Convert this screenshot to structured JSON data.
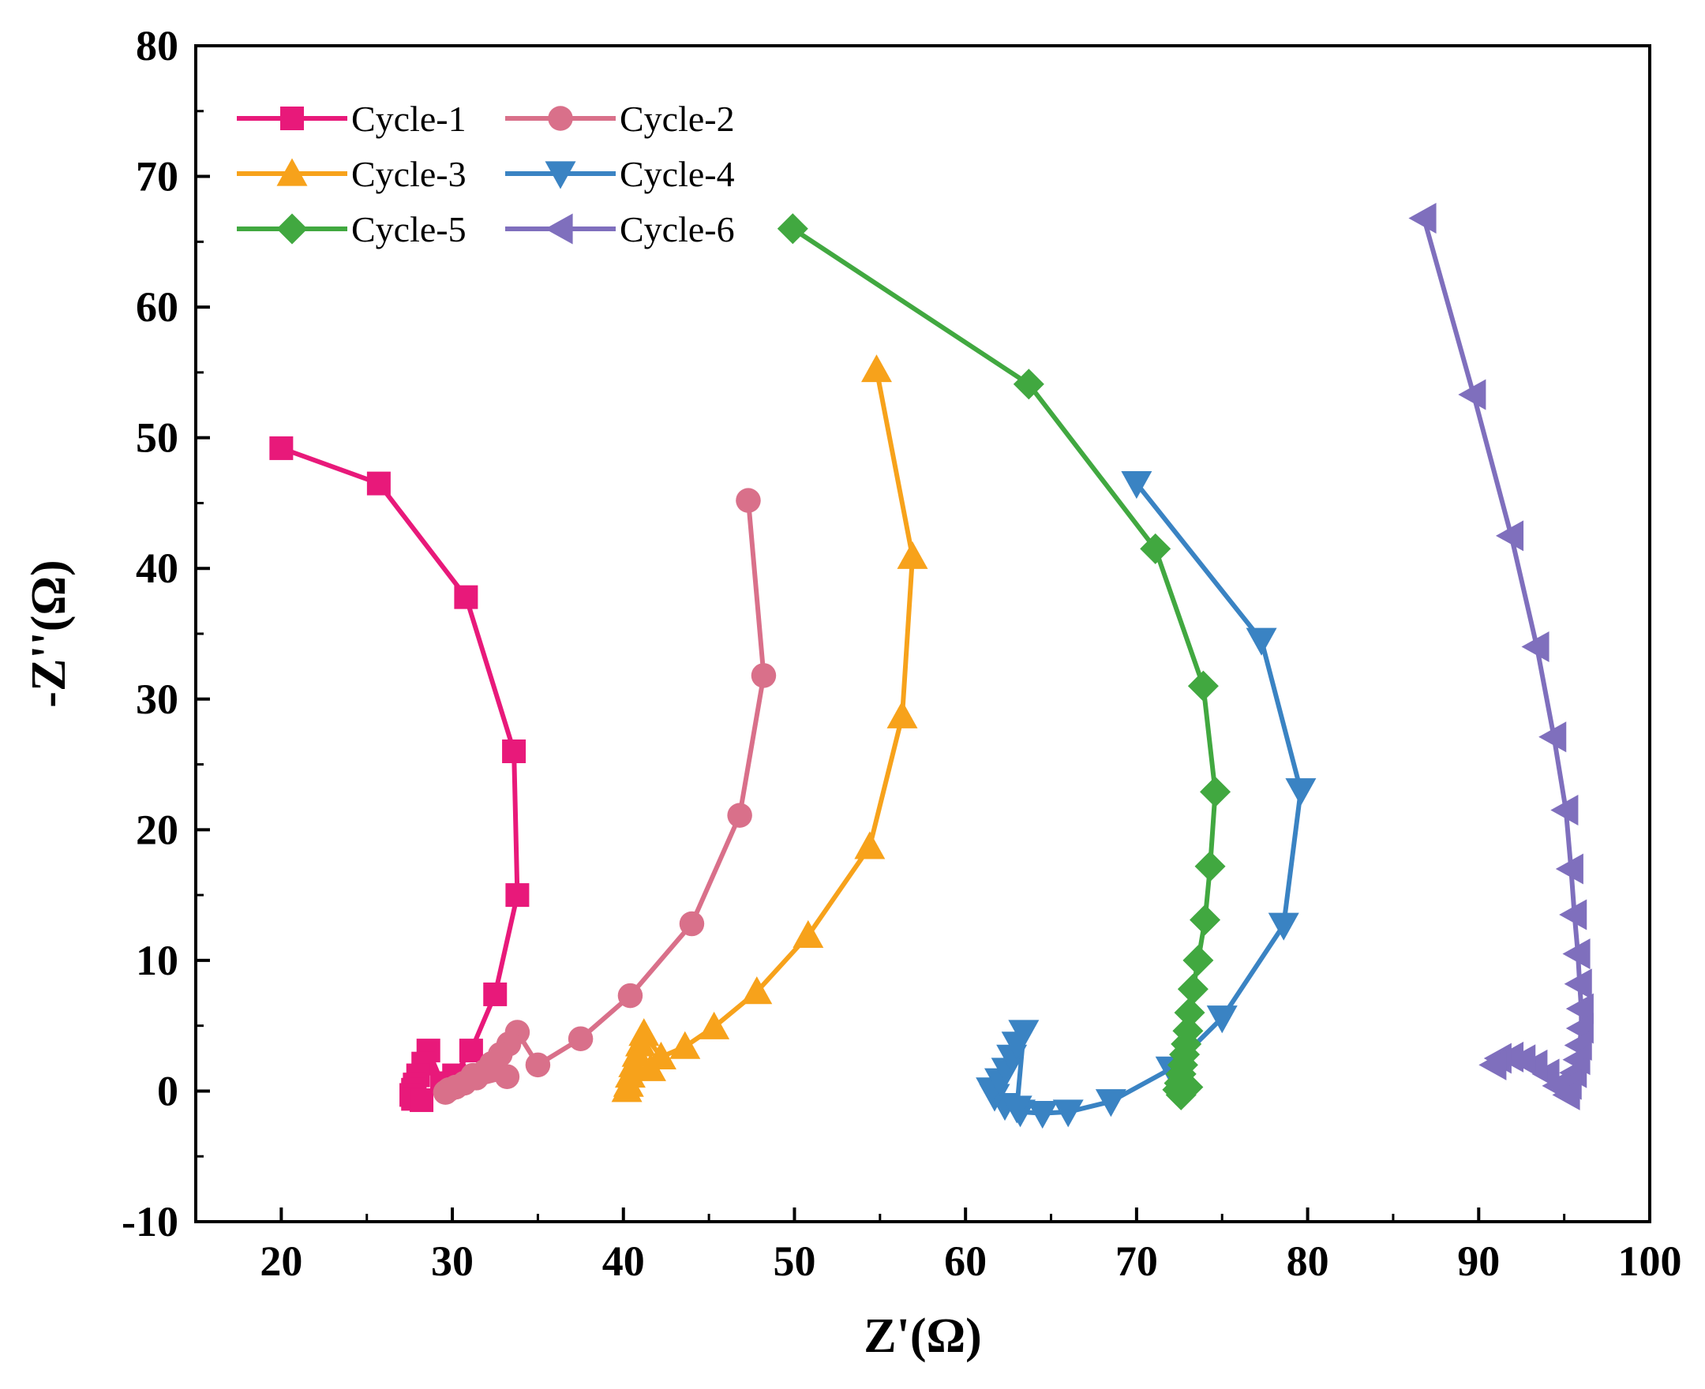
{
  "chart_data": {
    "type": "line",
    "xlabel": "Z'(Ω)",
    "ylabel": "-Z''(Ω)",
    "xlim": [
      15,
      100
    ],
    "ylim": [
      -10,
      80
    ],
    "xticks": [
      20,
      30,
      40,
      50,
      60,
      70,
      80,
      90,
      100
    ],
    "yticks": [
      -10,
      0,
      10,
      20,
      30,
      40,
      50,
      60,
      70,
      80
    ],
    "legend_position": "top-left",
    "series": [
      {
        "name": "Cycle-1",
        "color": "#e8197a",
        "marker": "square",
        "points": [
          [
            20,
            49.2
          ],
          [
            25.7,
            46.5
          ],
          [
            30.8,
            37.8
          ],
          [
            33.6,
            26
          ],
          [
            33.8,
            15
          ],
          [
            32.5,
            7.4
          ],
          [
            31.1,
            3.1
          ],
          [
            30.1,
            1.2
          ],
          [
            29.4,
            0.6
          ],
          [
            28.6,
            3.1
          ],
          [
            28.3,
            2.1
          ],
          [
            28.0,
            1.2
          ],
          [
            27.8,
            0.5
          ],
          [
            27.7,
            0.1
          ],
          [
            27.6,
            -0.3
          ],
          [
            27.7,
            -0.6
          ],
          [
            28.2,
            -0.7
          ]
        ]
      },
      {
        "name": "Cycle-2",
        "color": "#d9708a",
        "marker": "circle",
        "points": [
          [
            47.3,
            45.2
          ],
          [
            48.2,
            31.8
          ],
          [
            46.8,
            21.1
          ],
          [
            44,
            12.8
          ],
          [
            40.4,
            7.3
          ],
          [
            37.5,
            4
          ],
          [
            35,
            2
          ],
          [
            33.8,
            4.5
          ],
          [
            33.3,
            3.6
          ],
          [
            32.8,
            2.8
          ],
          [
            32.3,
            2.1
          ],
          [
            31.9,
            1.5
          ],
          [
            31.4,
            1.0
          ],
          [
            31.2,
            1.2
          ],
          [
            30.7,
            0.6
          ],
          [
            30.2,
            0.3
          ],
          [
            29.8,
            0.1
          ],
          [
            29.6,
            -0.1
          ],
          [
            33.2,
            1.1
          ]
        ]
      },
      {
        "name": "Cycle-3",
        "color": "#f7a21b",
        "marker": "triangle-up",
        "points": [
          [
            54.8,
            55.2
          ],
          [
            56.9,
            40.9
          ],
          [
            56.3,
            28.7
          ],
          [
            54.4,
            18.7
          ],
          [
            50.8,
            11.9
          ],
          [
            47.8,
            7.6
          ],
          [
            45.3,
            4.9
          ],
          [
            43.6,
            3.4
          ],
          [
            42.2,
            2.6
          ],
          [
            41.2,
            4.4
          ],
          [
            41.0,
            3.6
          ],
          [
            40.8,
            2.8
          ],
          [
            40.6,
            2.0
          ],
          [
            40.4,
            1.2
          ],
          [
            40.3,
            0.5
          ],
          [
            40.2,
            0.1
          ],
          [
            41.6,
            1.7
          ]
        ]
      },
      {
        "name": "Cycle-4",
        "color": "#3a83c3",
        "marker": "triangle-down",
        "points": [
          [
            70,
            46.5
          ],
          [
            77.3,
            34.5
          ],
          [
            79.6,
            23
          ],
          [
            78.6,
            12.7
          ],
          [
            75,
            5.6
          ],
          [
            72,
            1.7
          ],
          [
            68.5,
            -0.8
          ],
          [
            66,
            -1.6
          ],
          [
            64.5,
            -1.7
          ],
          [
            63.2,
            -1.6
          ],
          [
            62.3,
            -1.1
          ],
          [
            61.7,
            -0.4
          ],
          [
            61.5,
            0.1
          ],
          [
            62.0,
            0.8
          ],
          [
            62.4,
            1.6
          ],
          [
            62.7,
            2.6
          ],
          [
            63.0,
            3.6
          ],
          [
            63.4,
            4.5
          ],
          [
            63.0,
            -1.3
          ]
        ]
      },
      {
        "name": "Cycle-5",
        "color": "#41a840",
        "marker": "diamond",
        "points": [
          [
            49.9,
            66
          ],
          [
            63.7,
            54.1
          ],
          [
            71.1,
            41.5
          ],
          [
            73.9,
            31
          ],
          [
            74.6,
            22.9
          ],
          [
            74.3,
            17.2
          ],
          [
            74.0,
            13.1
          ],
          [
            73.6,
            10
          ],
          [
            73.3,
            7.8
          ],
          [
            73.1,
            6.0
          ],
          [
            73.0,
            4.6
          ],
          [
            72.9,
            3.6
          ],
          [
            72.8,
            2.8
          ],
          [
            72.7,
            2.0
          ],
          [
            72.6,
            1.3
          ],
          [
            72.5,
            0.6
          ],
          [
            72.4,
            0.1
          ],
          [
            72.6,
            -0.3
          ],
          [
            73.0,
            0.3
          ]
        ]
      },
      {
        "name": "Cycle-6",
        "color": "#7f6fbd",
        "marker": "triangle-left",
        "points": [
          [
            86.8,
            66.8
          ],
          [
            89.7,
            53.3
          ],
          [
            91.9,
            42.5
          ],
          [
            93.4,
            34
          ],
          [
            94.4,
            27.1
          ],
          [
            95.1,
            21.5
          ],
          [
            95.4,
            17
          ],
          [
            95.6,
            13.5
          ],
          [
            95.8,
            10.5
          ],
          [
            95.9,
            8.2
          ],
          [
            96.0,
            6.3
          ],
          [
            96.0,
            4.8
          ],
          [
            95.9,
            3.5
          ],
          [
            95.8,
            2.4
          ],
          [
            95.6,
            1.4
          ],
          [
            95.3,
            0.5
          ],
          [
            95.2,
            -0.3
          ],
          [
            94.6,
            0.4
          ],
          [
            94.0,
            1.3
          ],
          [
            93.3,
            2.0
          ],
          [
            92.6,
            2.4
          ],
          [
            91.9,
            2.6
          ],
          [
            91.2,
            2.5
          ],
          [
            90.9,
            2.0
          ]
        ]
      }
    ]
  }
}
